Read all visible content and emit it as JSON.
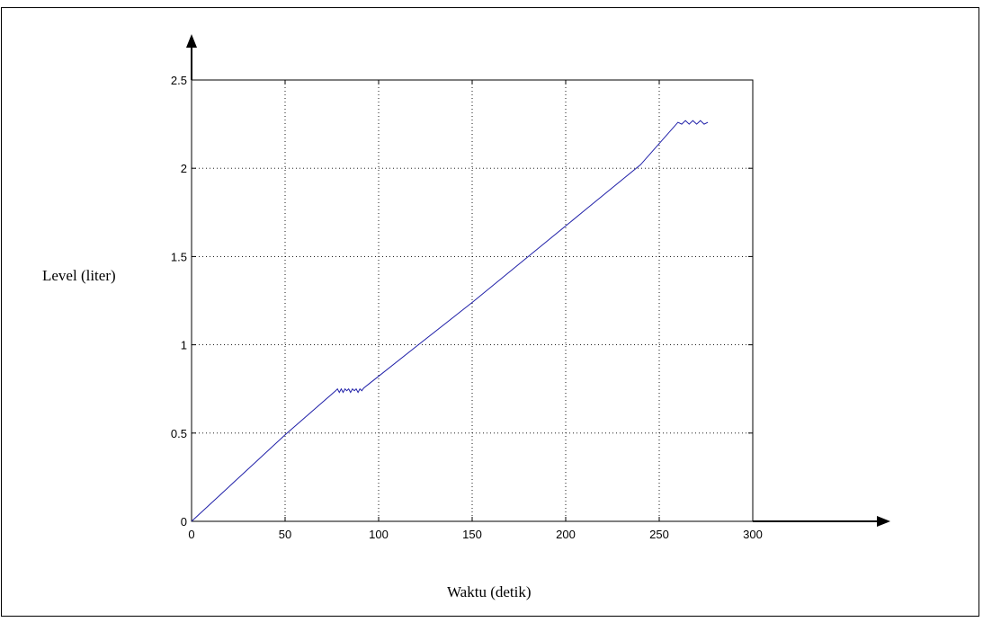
{
  "chart_data": {
    "type": "line",
    "title": "",
    "xlabel": "Waktu (detik)",
    "ylabel": "Level (liter)",
    "xlim": [
      0,
      300
    ],
    "ylim": [
      0,
      2.5
    ],
    "xticks": [
      0,
      50,
      100,
      150,
      200,
      250,
      300
    ],
    "yticks": [
      0,
      0.5,
      1,
      1.5,
      2,
      2.5
    ],
    "xtick_labels": [
      "0",
      "50",
      "100",
      "150",
      "200",
      "250",
      "300"
    ],
    "ytick_labels": [
      "0",
      "0.5",
      "1",
      "1.5",
      "2",
      "2.5"
    ],
    "grid": true,
    "legend": "none",
    "series": [
      {
        "color": "#1f1fa8",
        "x": [
          0,
          50,
          77,
          78,
          79,
          80,
          81,
          82,
          83,
          84,
          85,
          86,
          87,
          88,
          89,
          90,
          91,
          92,
          95,
          120,
          150,
          180,
          210,
          240,
          260,
          262,
          264,
          266,
          268,
          270,
          272,
          274,
          276
        ],
        "y": [
          0,
          0.49,
          0.74,
          0.75,
          0.73,
          0.75,
          0.73,
          0.75,
          0.74,
          0.75,
          0.73,
          0.75,
          0.74,
          0.75,
          0.73,
          0.75,
          0.74,
          0.755,
          0.78,
          0.99,
          1.24,
          1.5,
          1.76,
          2.02,
          2.26,
          2.25,
          2.27,
          2.25,
          2.27,
          2.25,
          2.27,
          2.25,
          2.26
        ]
      }
    ]
  }
}
